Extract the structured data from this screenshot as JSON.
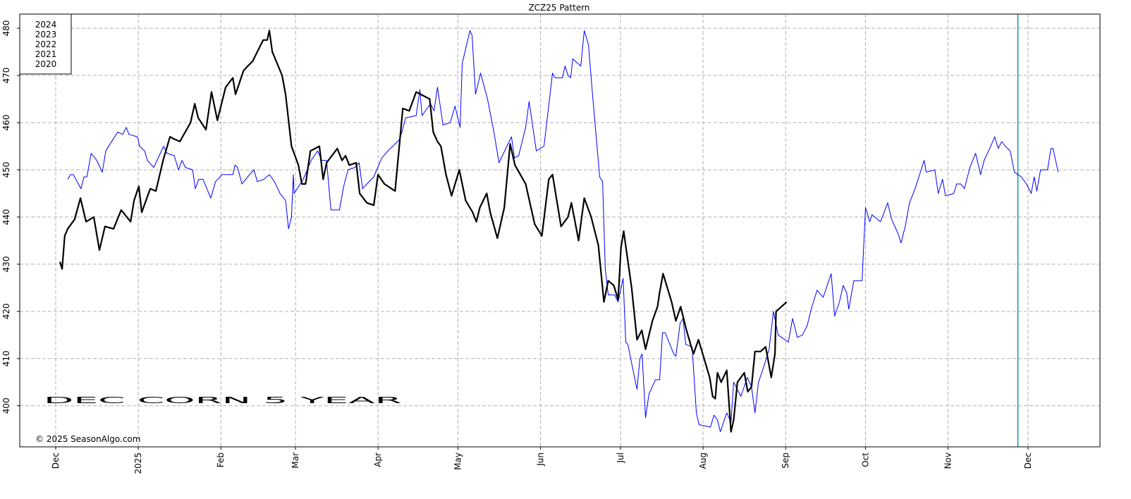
{
  "chart_data": {
    "type": "line",
    "title": "ZCZ25  Pattern",
    "annotation": "DEC CORN 5 YEAR",
    "credit": "© 2025 SeasonAlgo.com",
    "legend_entries": [
      "2024",
      "2023",
      "2022",
      "2021",
      "2020"
    ],
    "legend_color": "#0000ff",
    "legend_position": "upper left",
    "grid": true,
    "ylim": [
      391.3,
      483
    ],
    "yticks": [
      400,
      410,
      420,
      430,
      440,
      450,
      460,
      470,
      480
    ],
    "xlim": [
      -13.5,
      392
    ],
    "xticks": [
      {
        "value": 0,
        "label": "Dec"
      },
      {
        "value": 31,
        "label": "2025"
      },
      {
        "value": 62,
        "label": "Feb"
      },
      {
        "value": 90,
        "label": "Mar"
      },
      {
        "value": 121,
        "label": "Apr"
      },
      {
        "value": 151,
        "label": "May"
      },
      {
        "value": 182,
        "label": "Jun"
      },
      {
        "value": 212,
        "label": "Jul"
      },
      {
        "value": 243,
        "label": "Aug"
      },
      {
        "value": 274,
        "label": "Sep"
      },
      {
        "value": 304,
        "label": "Oct"
      },
      {
        "value": 335,
        "label": "Nov"
      },
      {
        "value": 365,
        "label": "Dec"
      }
    ],
    "vline": {
      "x": 361.2,
      "color": "#008b8b"
    },
    "series": [
      {
        "color": "#0000ff",
        "width": 1,
        "x": [
          4.5,
          5.6,
          6.6,
          9.5,
          10.6,
          11.7,
          13.3,
          15.4,
          17.5,
          18.8,
          21,
          23.3,
          25.2,
          26.5,
          27.5,
          30.7,
          31.5,
          33.4,
          34.4,
          36.8,
          40.5,
          41.8,
          44.5,
          46.1,
          47.4,
          48.7,
          51.4,
          52.4,
          53.7,
          55.3,
          58.2,
          60,
          62.5,
          66.5,
          67.3,
          68.3,
          69.9,
          72.8,
          74.4,
          75.7,
          78.1,
          80.2,
          82.1,
          84.2,
          86.3,
          87.4,
          88.5,
          89.2,
          89.5,
          92.9,
          95.9,
          98.3,
          99.9,
          101.7,
          103.3,
          106.5,
          108.1,
          109.7,
          112.3,
          113.9,
          115.2,
          116.8,
          119.4,
          122.4,
          124.7,
          127.4,
          129.2,
          131.4,
          135.3,
          136.7,
          137.5,
          140.7,
          142,
          143.3,
          145.4,
          148.1,
          149.9,
          151.8,
          152.6,
          155.5,
          156.3,
          157.6,
          159.5,
          162.1,
          164.5,
          166.4,
          169.8,
          171.1,
          172.2,
          173.8,
          176.4,
          177.7,
          180.4,
          183.3,
          186.5,
          187.5,
          190.2,
          191.2,
          192.3,
          193.3,
          194.1,
          197.1,
          198.4,
          200,
          201.5,
          204.2,
          205.3,
          206.3,
          207.4,
          209.8,
          211.1,
          213,
          214,
          214.8,
          216.2,
          218.2,
          219.3,
          220.1,
          221.4,
          222.7,
          225.1,
          226.7,
          227.8,
          228.8,
          232,
          232.8,
          234.4,
          235.5,
          236.5,
          238.9,
          240.5,
          241.5,
          245.8,
          247.1,
          248.4,
          249.5,
          251.9,
          253.5,
          254.5,
          257.2,
          259.6,
          261.2,
          262.5,
          263.8,
          266.2,
          267.8,
          269.4,
          271.2,
          275,
          276.6,
          278.4,
          280.3,
          282.1,
          283.6,
          285.8,
          288.1,
          291.1,
          292.4,
          294.2,
          295.6,
          296.9,
          297.7,
          299.6,
          302.7,
          304,
          305.6,
          306.4,
          309.6,
          312.3,
          313.8,
          316.2,
          317.3,
          318.9,
          320.5,
          322.6,
          326,
          326.8,
          330,
          331.3,
          332.9,
          334,
          337.1,
          338.2,
          339.8,
          341.1,
          343.2,
          345.3,
          347.2,
          348.5,
          350.6,
          352.5,
          353.8,
          355.1,
          356.5,
          358.3,
          359.9,
          361.2,
          362.5,
          364.4,
          366.2,
          367.3,
          368.3,
          369.7,
          372.3,
          373.6,
          374.4,
          376.3
        ],
        "values": [
          448,
          449,
          449,
          446,
          448.5,
          448.5,
          453.5,
          452,
          449.5,
          454,
          456,
          458,
          457.5,
          459,
          457.5,
          457,
          455,
          454,
          452,
          450.5,
          455,
          453.5,
          453,
          450,
          452,
          450.5,
          450,
          446,
          448,
          448,
          444,
          447.5,
          449,
          449,
          451,
          450.5,
          447,
          449,
          450,
          447.5,
          448,
          449,
          447.5,
          445,
          443.5,
          437.5,
          440,
          449,
          445,
          448,
          452,
          454,
          452,
          452,
          441.5,
          441.5,
          446.5,
          450,
          450.5,
          451.5,
          446,
          447,
          448.5,
          452.5,
          454,
          455.5,
          456.5,
          461,
          461.5,
          467,
          461.5,
          464,
          462.5,
          467.5,
          459.5,
          460,
          463.5,
          459,
          472.5,
          479.5,
          478.5,
          466,
          470.5,
          465,
          458,
          451.5,
          455.5,
          457,
          452.5,
          453,
          459,
          464.5,
          454,
          455,
          470.5,
          469.5,
          469.5,
          472,
          470,
          469.5,
          473.5,
          472,
          479.5,
          476.5,
          466,
          448.5,
          447.5,
          429,
          423.5,
          423.5,
          422,
          427,
          413.5,
          413,
          409,
          403.5,
          410,
          411,
          397.5,
          402.5,
          405.5,
          405.5,
          415.5,
          415.5,
          411,
          410.5,
          417.5,
          418.5,
          413,
          412.5,
          398.5,
          396,
          395.5,
          398,
          397,
          394.5,
          398.5,
          396.5,
          405,
          402,
          406,
          404,
          398.5,
          405,
          409,
          412,
          420,
          415,
          413.5,
          418.5,
          414.5,
          415,
          417,
          420.5,
          424.5,
          423,
          428,
          419,
          422,
          425.5,
          424,
          420.5,
          426.5,
          426.5,
          442,
          439,
          440.5,
          439,
          443,
          439.5,
          436.5,
          434.5,
          438,
          443,
          446,
          452,
          449.5,
          450,
          445,
          448,
          444.5,
          445,
          447,
          447,
          446,
          450.5,
          453.5,
          449,
          452,
          454.5,
          457,
          454.5,
          456,
          455,
          454,
          449.5,
          449,
          448.5,
          447,
          445,
          448.5,
          445.5,
          450,
          450,
          454.5,
          454.5,
          449.5
        ]
      },
      {
        "color": "#000000",
        "width": 2.2,
        "x": [
          1.6,
          2.4,
          3.4,
          4.5,
          7.1,
          9.3,
          11.4,
          14.3,
          16.4,
          18.5,
          21.7,
          24.6,
          28.1,
          29.4,
          31.2,
          32.3,
          35.5,
          37.6,
          40.3,
          42.9,
          44.5,
          46.6,
          50.6,
          52.2,
          53.5,
          56.4,
          58.5,
          60.7,
          63.8,
          66.5,
          67.5,
          70.5,
          72.1,
          73.9,
          77.9,
          79.4,
          80.2,
          81.3,
          85,
          86.3,
          88.5,
          91.1,
          92.4,
          93.8,
          95.6,
          99,
          100.4,
          101.7,
          105.7,
          107.5,
          108.8,
          110.2,
          112.8,
          114.1,
          116.8,
          119.4,
          121,
          123.4,
          127.4,
          130.3,
          132.7,
          135.3,
          140.4,
          141.7,
          143.3,
          144.6,
          146.5,
          148.6,
          151.5,
          153.9,
          156.5,
          157.9,
          159.2,
          161.8,
          163.1,
          165.8,
          168.4,
          170.6,
          172.4,
          176.4,
          179.8,
          182.5,
          185.1,
          186.5,
          189.7,
          192.3,
          193.6,
          196.3,
          198.4,
          201,
          203.7,
          205.8,
          207.4,
          209.5,
          211.1,
          212.2,
          213.2,
          216.2,
          218.2,
          220,
          221.4,
          224,
          225.9,
          226.7,
          228,
          231.2,
          232.8,
          234.6,
          236.8,
          238.6,
          239.4,
          241.3,
          243.4,
          245.5,
          246.6,
          247.6,
          248.4,
          249.8,
          251.9,
          253.5,
          254.5,
          255.9,
          258.5,
          259.8,
          261.2,
          262.5,
          264.6,
          266.5,
          268.6,
          270,
          270.4,
          274.4
        ],
        "values": [
          430.5,
          429,
          436,
          437.5,
          439.5,
          444,
          439,
          440,
          433,
          438,
          437.5,
          441.5,
          439,
          443.5,
          446.5,
          441,
          446,
          445.5,
          452,
          457,
          456.5,
          456,
          460,
          464,
          461,
          458.5,
          466.5,
          460.5,
          467.5,
          469.5,
          466,
          471,
          472,
          473,
          477.5,
          477.5,
          479.5,
          475,
          470,
          466,
          455,
          451,
          447,
          447,
          454,
          455,
          448,
          451.5,
          454.5,
          452,
          453,
          451,
          451.5,
          445,
          443,
          442.5,
          449,
          447,
          445.5,
          463,
          462.5,
          466.5,
          465,
          458,
          456,
          455,
          449,
          444.5,
          450,
          443.5,
          441,
          439,
          442,
          445,
          441,
          435.5,
          442,
          455.5,
          451,
          447,
          438.5,
          436,
          448,
          449,
          438,
          440,
          443,
          435,
          444,
          440,
          434,
          422,
          426.5,
          425.5,
          422.5,
          433.5,
          437,
          425,
          414,
          416,
          412,
          418,
          421,
          424,
          428,
          422,
          418,
          421,
          416,
          412.5,
          411,
          414,
          410,
          406,
          402,
          401.5,
          407,
          405,
          407.5,
          394.5,
          397,
          405,
          407,
          403,
          404,
          411.5,
          411.5,
          412.5,
          406,
          411,
          420,
          422
        ]
      }
    ]
  }
}
